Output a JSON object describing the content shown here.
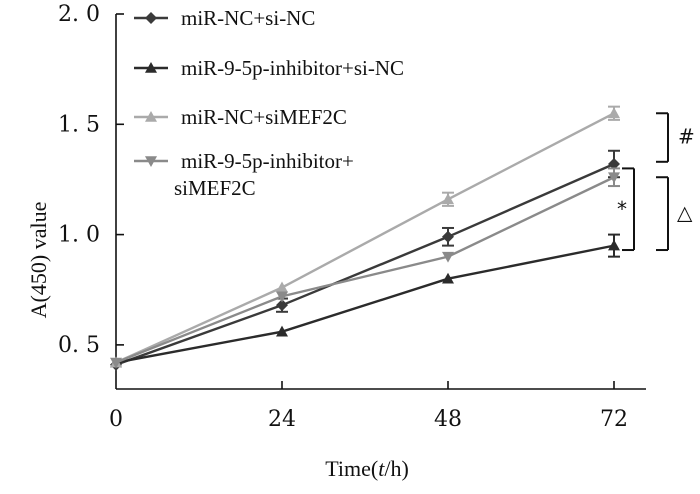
{
  "chart_data": {
    "type": "line",
    "title": "",
    "xlabel": "Time(t/h)",
    "xlabel_parts": {
      "prefix": "Time(",
      "var": "t",
      "suffix": "/h)"
    },
    "ylabel": "A(450) value",
    "x": [
      0,
      24,
      48,
      72
    ],
    "x_tick_labels": [
      "0",
      "24",
      "48",
      "72"
    ],
    "y_tick_values": [
      0.5,
      1.0,
      1.5,
      2.0
    ],
    "y_tick_labels": [
      "0. 5",
      "1. 0",
      "1. 5",
      "2. 0"
    ],
    "xlim": [
      0,
      75
    ],
    "ylim": [
      0.3,
      2.0
    ],
    "legend_position": "top-center",
    "series": [
      {
        "name": "miR-NC+si-NC",
        "legend_lines": [
          "miR-NC+si-NC"
        ],
        "color": "#3a3a3a",
        "marker": "diamond",
        "values": [
          0.41,
          0.68,
          0.99,
          1.32
        ],
        "errors": [
          0.02,
          0.03,
          0.04,
          0.06
        ]
      },
      {
        "name": "miR-9-5p-inhibitor+si-NC",
        "legend_lines": [
          "miR-9-5p-inhibitor+si-NC"
        ],
        "color": "#2b2b2b",
        "marker": "triangle",
        "values": [
          0.42,
          0.56,
          0.8,
          0.95
        ],
        "errors": [
          0.02,
          0.02,
          0.02,
          0.05
        ]
      },
      {
        "name": "miR-NC+siMEF2C",
        "legend_lines": [
          "miR-NC+siMEF2C"
        ],
        "color": "#aaaaaa",
        "marker": "triangle",
        "values": [
          0.42,
          0.76,
          1.16,
          1.55
        ],
        "errors": [
          0.02,
          0.02,
          0.03,
          0.03
        ]
      },
      {
        "name": "miR-9-5p-inhibitor+siMEF2C",
        "legend_lines": [
          "miR-9-5p-inhibitor+",
          "siMEF2C"
        ],
        "color": "#8a8a8a",
        "marker": "triangle-down",
        "values": [
          0.42,
          0.72,
          0.9,
          1.26
        ],
        "errors": [
          0.02,
          0.02,
          0.02,
          0.04
        ]
      }
    ],
    "annotations": [
      {
        "symbol": "#",
        "from": 1.55,
        "to": 1.33
      },
      {
        "symbol": "*",
        "from": 1.3,
        "to": 0.93
      },
      {
        "symbol": "△",
        "from": 1.26,
        "to": 0.93
      }
    ]
  }
}
